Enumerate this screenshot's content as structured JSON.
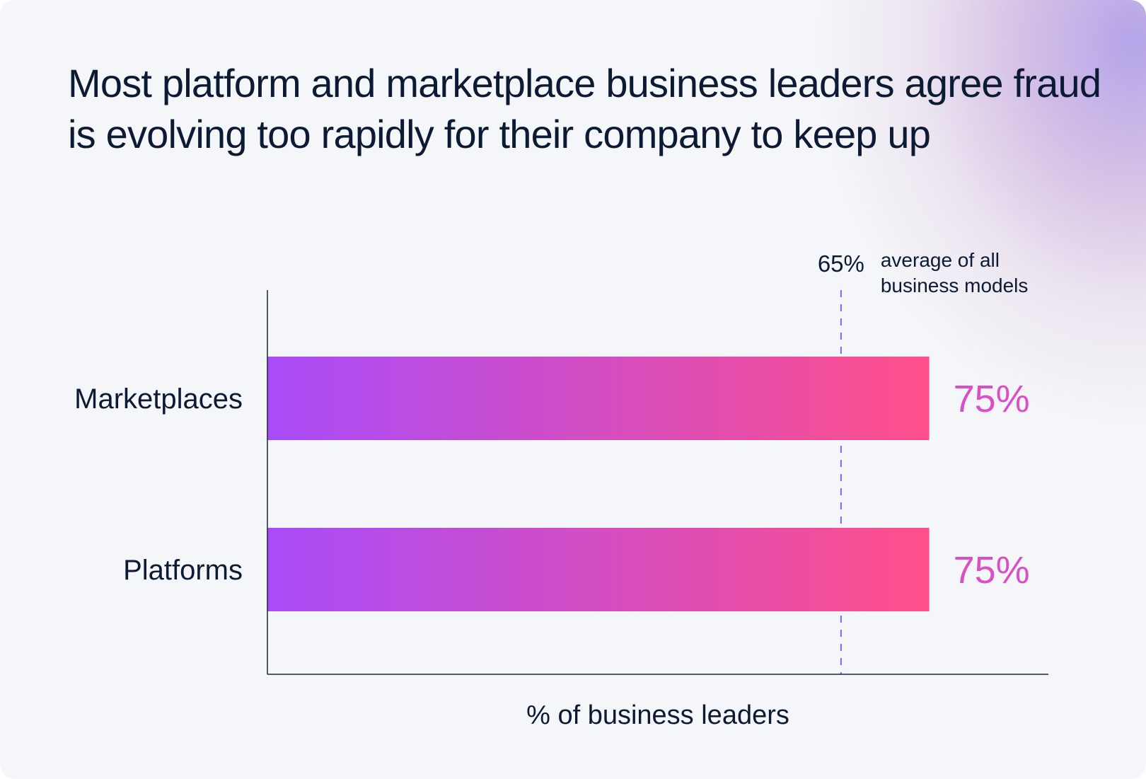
{
  "title": "Most platform and marketplace business leaders agree fraud is evolving too rapidly for their company to keep up",
  "chart_data": {
    "type": "bar",
    "orientation": "horizontal",
    "title": "Most platform and marketplace business leaders agree fraud is evolving too rapidly for their company to keep up",
    "categories": [
      "Marketplaces",
      "Platforms"
    ],
    "values": [
      75,
      75
    ],
    "value_labels": [
      "75%",
      "75%"
    ],
    "xlabel": "% of business leaders",
    "ylabel": "",
    "xlim": [
      0,
      88.5
    ],
    "grid": false,
    "reference_line": {
      "value": 65,
      "label": "65%",
      "note_lines": [
        "average of all",
        "business models"
      ],
      "color": "#7b64f2"
    },
    "bar_gradient": [
      "#a84cf9",
      "#ff4f8a"
    ],
    "value_label_color": "#d94fc8"
  }
}
